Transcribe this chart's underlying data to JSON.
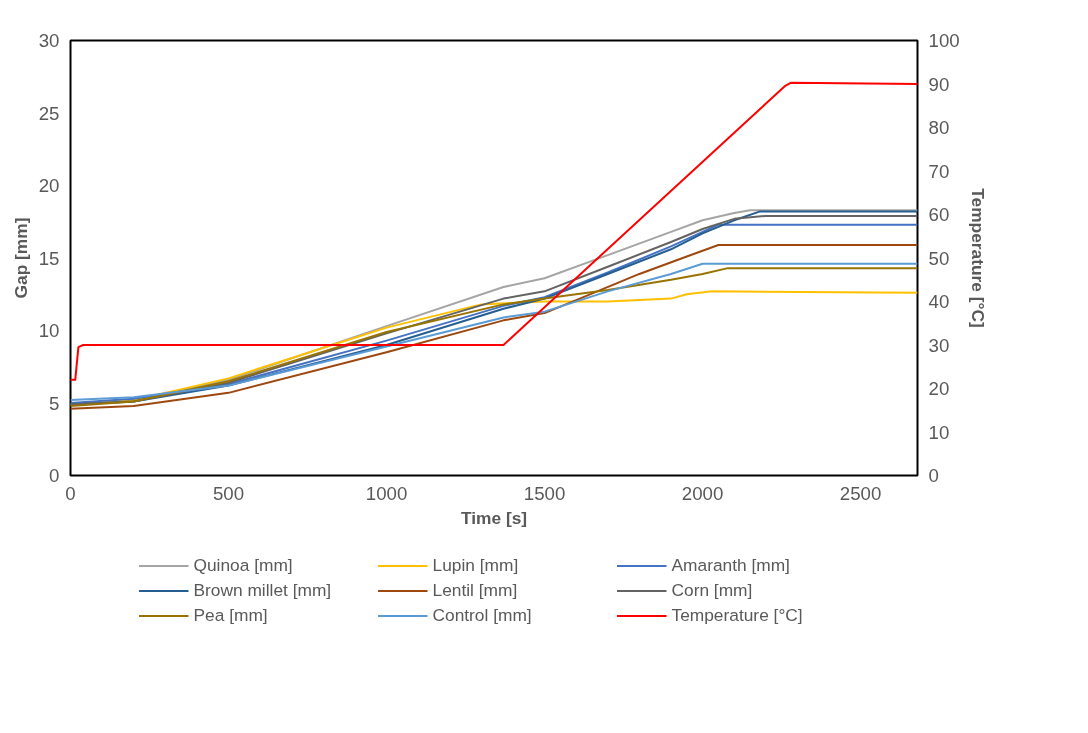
{
  "chart_data": {
    "type": "line",
    "xlabel": "Time [s]",
    "ylabel": "Gap [mm]",
    "y2label": "Temperature [°C]",
    "xlim": [
      0,
      2680
    ],
    "xticks": [
      0,
      500,
      1000,
      1500,
      2000,
      2500
    ],
    "ylim": [
      0,
      30
    ],
    "yticks": [
      0,
      5,
      10,
      15,
      20,
      25,
      30
    ],
    "y2lim": [
      0,
      100
    ],
    "y2ticks": [
      0,
      10,
      20,
      30,
      40,
      50,
      60,
      70,
      80,
      90,
      100
    ],
    "grid": false,
    "legend": "bottom",
    "marker": "none",
    "line_style": "solid",
    "series": [
      {
        "name": "Quinoa [mm]",
        "color": "#a5a5a5",
        "x": [
          0,
          200,
          500,
          1000,
          1370,
          1500,
          1700,
          1900,
          2000,
          2100,
          2150,
          2680
        ],
        "values": [
          4.9,
          5.2,
          6.6,
          10.3,
          13.0,
          13.6,
          15.2,
          16.8,
          17.6,
          18.1,
          18.3,
          18.3
        ]
      },
      {
        "name": "Lupin [mm]",
        "color": "#ffc000",
        "x": [
          0,
          200,
          500,
          1000,
          1300,
          1500,
          1700,
          1900,
          1950,
          2030,
          2680
        ],
        "values": [
          4.9,
          5.2,
          6.7,
          10.2,
          11.8,
          12.0,
          12.0,
          12.2,
          12.5,
          12.7,
          12.6
        ]
      },
      {
        "name": "Amaranth [mm]",
        "color": "#4472c4",
        "x": [
          0,
          200,
          500,
          1000,
          1370,
          1500,
          1700,
          1900,
          2050,
          2680
        ],
        "values": [
          5.0,
          5.3,
          6.3,
          9.3,
          11.7,
          12.3,
          14.0,
          15.8,
          17.3,
          17.3
        ]
      },
      {
        "name": "Brown millet [mm]",
        "color": "#255e91",
        "x": [
          0,
          200,
          500,
          1000,
          1370,
          1500,
          1700,
          1900,
          2000,
          2100,
          2180,
          2680
        ],
        "values": [
          4.9,
          5.1,
          6.2,
          9.0,
          11.5,
          12.2,
          13.9,
          15.6,
          16.7,
          17.6,
          18.2,
          18.2
        ]
      },
      {
        "name": "Lentil [mm]",
        "color": "#9e480e",
        "x": [
          0,
          200,
          500,
          1000,
          1370,
          1500,
          1600,
          1800,
          1950,
          2050,
          2680
        ],
        "values": [
          4.6,
          4.8,
          5.7,
          8.5,
          10.7,
          11.2,
          12.1,
          13.9,
          15.1,
          15.9,
          15.9
        ]
      },
      {
        "name": "Corn [mm]",
        "color": "#636363",
        "x": [
          0,
          200,
          500,
          1000,
          1370,
          1500,
          1700,
          1900,
          2000,
          2100,
          2200,
          2680
        ],
        "values": [
          4.9,
          5.1,
          6.4,
          9.8,
          12.2,
          12.7,
          14.4,
          16.1,
          17.0,
          17.7,
          17.9,
          17.9
        ]
      },
      {
        "name": "Pea [mm]",
        "color": "#997300",
        "x": [
          0,
          200,
          500,
          1000,
          1370,
          1500,
          1700,
          1900,
          2000,
          2080,
          2680
        ],
        "values": [
          4.8,
          5.1,
          6.5,
          9.9,
          11.8,
          12.2,
          12.8,
          13.5,
          13.9,
          14.3,
          14.3
        ]
      },
      {
        "name": "Control [mm]",
        "color": "#5b9bd5",
        "x": [
          0,
          200,
          500,
          1000,
          1370,
          1500,
          1700,
          1900,
          2000,
          2680
        ],
        "values": [
          5.2,
          5.4,
          6.2,
          8.9,
          10.9,
          11.3,
          12.7,
          13.9,
          14.6,
          14.6
        ]
      },
      {
        "name": "Temperature [°C]",
        "color": "#ff0000",
        "axis": "y2",
        "x": [
          0,
          15,
          25,
          40,
          1370,
          2260,
          2280,
          2680
        ],
        "values": [
          22,
          22,
          29.5,
          30,
          30,
          89.5,
          90.3,
          90
        ]
      }
    ]
  }
}
